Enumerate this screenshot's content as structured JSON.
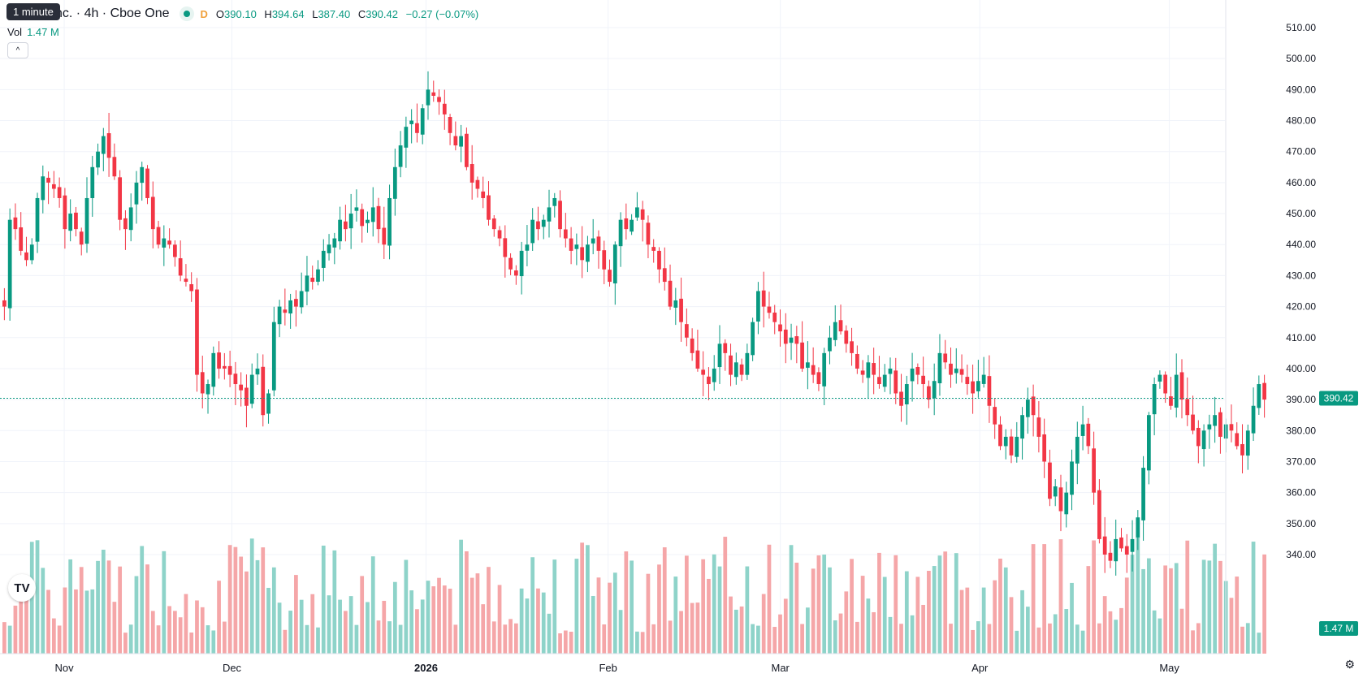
{
  "header": {
    "tooltip": "1 minute",
    "symbol": "nc. · 4h · Cboe One",
    "interval_badge": "D",
    "ohlc": {
      "o_label": "O",
      "o": "390.10",
      "h_label": "H",
      "h": "394.64",
      "l_label": "L",
      "l": "387.40",
      "c_label": "C",
      "c": "390.42",
      "change": "−0.27 (−0.07%)"
    },
    "vol_label": "Vol",
    "vol_value": "1.47 M"
  },
  "price_axis": {
    "ticks": [
      "510.00",
      "500.00",
      "490.00",
      "480.00",
      "470.00",
      "460.00",
      "450.00",
      "440.00",
      "430.00",
      "420.00",
      "410.00",
      "400.00",
      "390.00",
      "380.00",
      "370.00",
      "360.00",
      "350.00",
      "340.00"
    ],
    "last_price_label": "390.42",
    "volume_label": "1.47 M"
  },
  "time_axis": {
    "labels": [
      "Nov",
      "Dec",
      "2026",
      "Feb",
      "Mar",
      "Apr",
      "May"
    ]
  },
  "colors": {
    "up": "#089981",
    "down": "#f23645",
    "up_vol": "#8ed3c9",
    "down_vol": "#f5a6a8",
    "grid": "#f0f3fa"
  },
  "logo_text": "TV",
  "settings_icon": "⚙",
  "chart_data": {
    "type": "candlestick",
    "title": "nc. · 4h · Cboe One",
    "ylim": [
      330,
      515
    ],
    "x_labels": [
      "Nov",
      "Dec",
      "2026",
      "Feb",
      "Mar",
      "Apr",
      "May"
    ],
    "last_close": 390.42,
    "last_volume": "1.47 M",
    "closes": [
      420,
      448,
      445,
      438,
      435,
      440,
      455,
      462,
      460,
      458,
      455,
      445,
      450,
      445,
      440,
      455,
      465,
      470,
      475,
      468,
      462,
      448,
      445,
      452,
      460,
      465,
      455,
      445,
      440,
      442,
      440,
      436,
      430,
      428,
      425,
      398,
      392,
      395,
      405,
      400,
      400,
      398,
      395,
      393,
      388,
      398,
      400,
      385,
      392,
      415,
      420,
      418,
      422,
      420,
      425,
      430,
      428,
      432,
      438,
      440,
      442,
      448,
      445,
      450,
      452,
      446,
      448,
      452,
      445,
      440,
      455,
      465,
      472,
      478,
      480,
      476,
      484,
      490,
      488,
      486,
      482,
      476,
      472,
      475,
      465,
      460,
      458,
      455,
      448,
      445,
      442,
      436,
      432,
      430,
      438,
      440,
      448,
      445,
      448,
      452,
      455,
      445,
      442,
      438,
      440,
      435,
      440,
      442,
      438,
      432,
      428,
      440,
      448,
      445,
      448,
      452,
      448,
      440,
      438,
      432,
      428,
      420,
      422,
      415,
      410,
      405,
      400,
      398,
      395,
      400,
      408,
      405,
      398,
      402,
      398,
      405,
      415,
      425,
      420,
      418,
      415,
      412,
      408,
      410,
      408,
      400,
      402,
      398,
      395,
      405,
      410,
      415,
      412,
      408,
      405,
      400,
      398,
      402,
      398,
      395,
      398,
      400,
      392,
      388,
      395,
      400,
      398,
      395,
      390,
      396,
      405,
      402,
      398,
      400,
      398,
      395,
      392,
      396,
      398,
      388,
      382,
      375,
      378,
      372,
      378,
      385,
      390,
      385,
      378,
      370,
      358,
      362,
      354,
      360,
      370,
      378,
      382,
      375,
      360,
      345,
      340,
      338,
      345,
      342,
      340,
      345,
      352,
      368,
      385,
      395,
      398,
      392,
      388,
      398,
      390,
      385,
      380,
      375,
      380,
      382,
      385,
      378,
      382,
      380,
      375,
      372,
      380,
      388,
      395,
      390
    ]
  }
}
